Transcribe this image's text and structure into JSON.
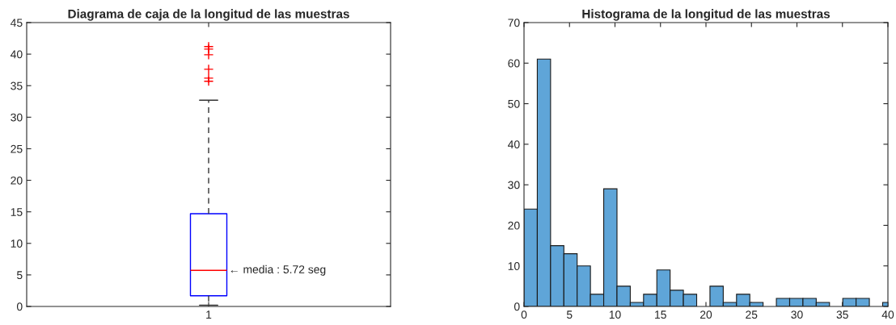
{
  "chart_data": [
    {
      "type": "box",
      "title": "Diagrama de caja de la longitud de las muestras",
      "categories": [
        "1"
      ],
      "series": [
        {
          "color": "#0000ff",
          "boxes": [
            {
              "low": 0.2,
              "q1": 1.7,
              "median": 5.72,
              "q3": 14.7,
              "high": 32.7,
              "outliers": [
                41.2,
                40.8,
                39.9,
                37.6,
                36.2,
                35.7
              ]
            }
          ]
        }
      ],
      "ylim": [
        0,
        45
      ],
      "yticks": [
        0,
        5,
        10,
        15,
        20,
        25,
        30,
        35,
        40,
        45
      ],
      "grid": false,
      "annotations": [
        {
          "text": "← media : 5.72 seg",
          "x": "1",
          "y": 5.72
        }
      ]
    },
    {
      "type": "histogram",
      "title": "Histograma de la longitud de las muestras",
      "color": "#5fa5d8",
      "bins": [
        0,
        1.46,
        2.92,
        4.38,
        5.84,
        7.3,
        8.76,
        10.22,
        11.68,
        13.14,
        14.6,
        16.06,
        17.52,
        18.98,
        20.44,
        21.9,
        23.36,
        24.82,
        26.28,
        27.74,
        29.2,
        30.66,
        32.12,
        33.58,
        35.04,
        36.5,
        37.96,
        39.42,
        40.88
      ],
      "values": [
        24,
        61,
        15,
        13,
        10,
        3,
        29,
        5,
        1,
        3,
        9,
        4,
        3,
        0,
        5,
        1,
        3,
        1,
        0,
        2,
        2,
        2,
        1,
        0,
        2,
        2,
        0,
        1
      ],
      "xlim": [
        0,
        40
      ],
      "xticks": [
        0,
        5,
        10,
        15,
        20,
        25,
        30,
        35,
        40
      ],
      "ylim": [
        0,
        70
      ],
      "yticks": [
        0,
        10,
        20,
        30,
        40,
        50,
        60,
        70
      ],
      "grid": false
    }
  ]
}
